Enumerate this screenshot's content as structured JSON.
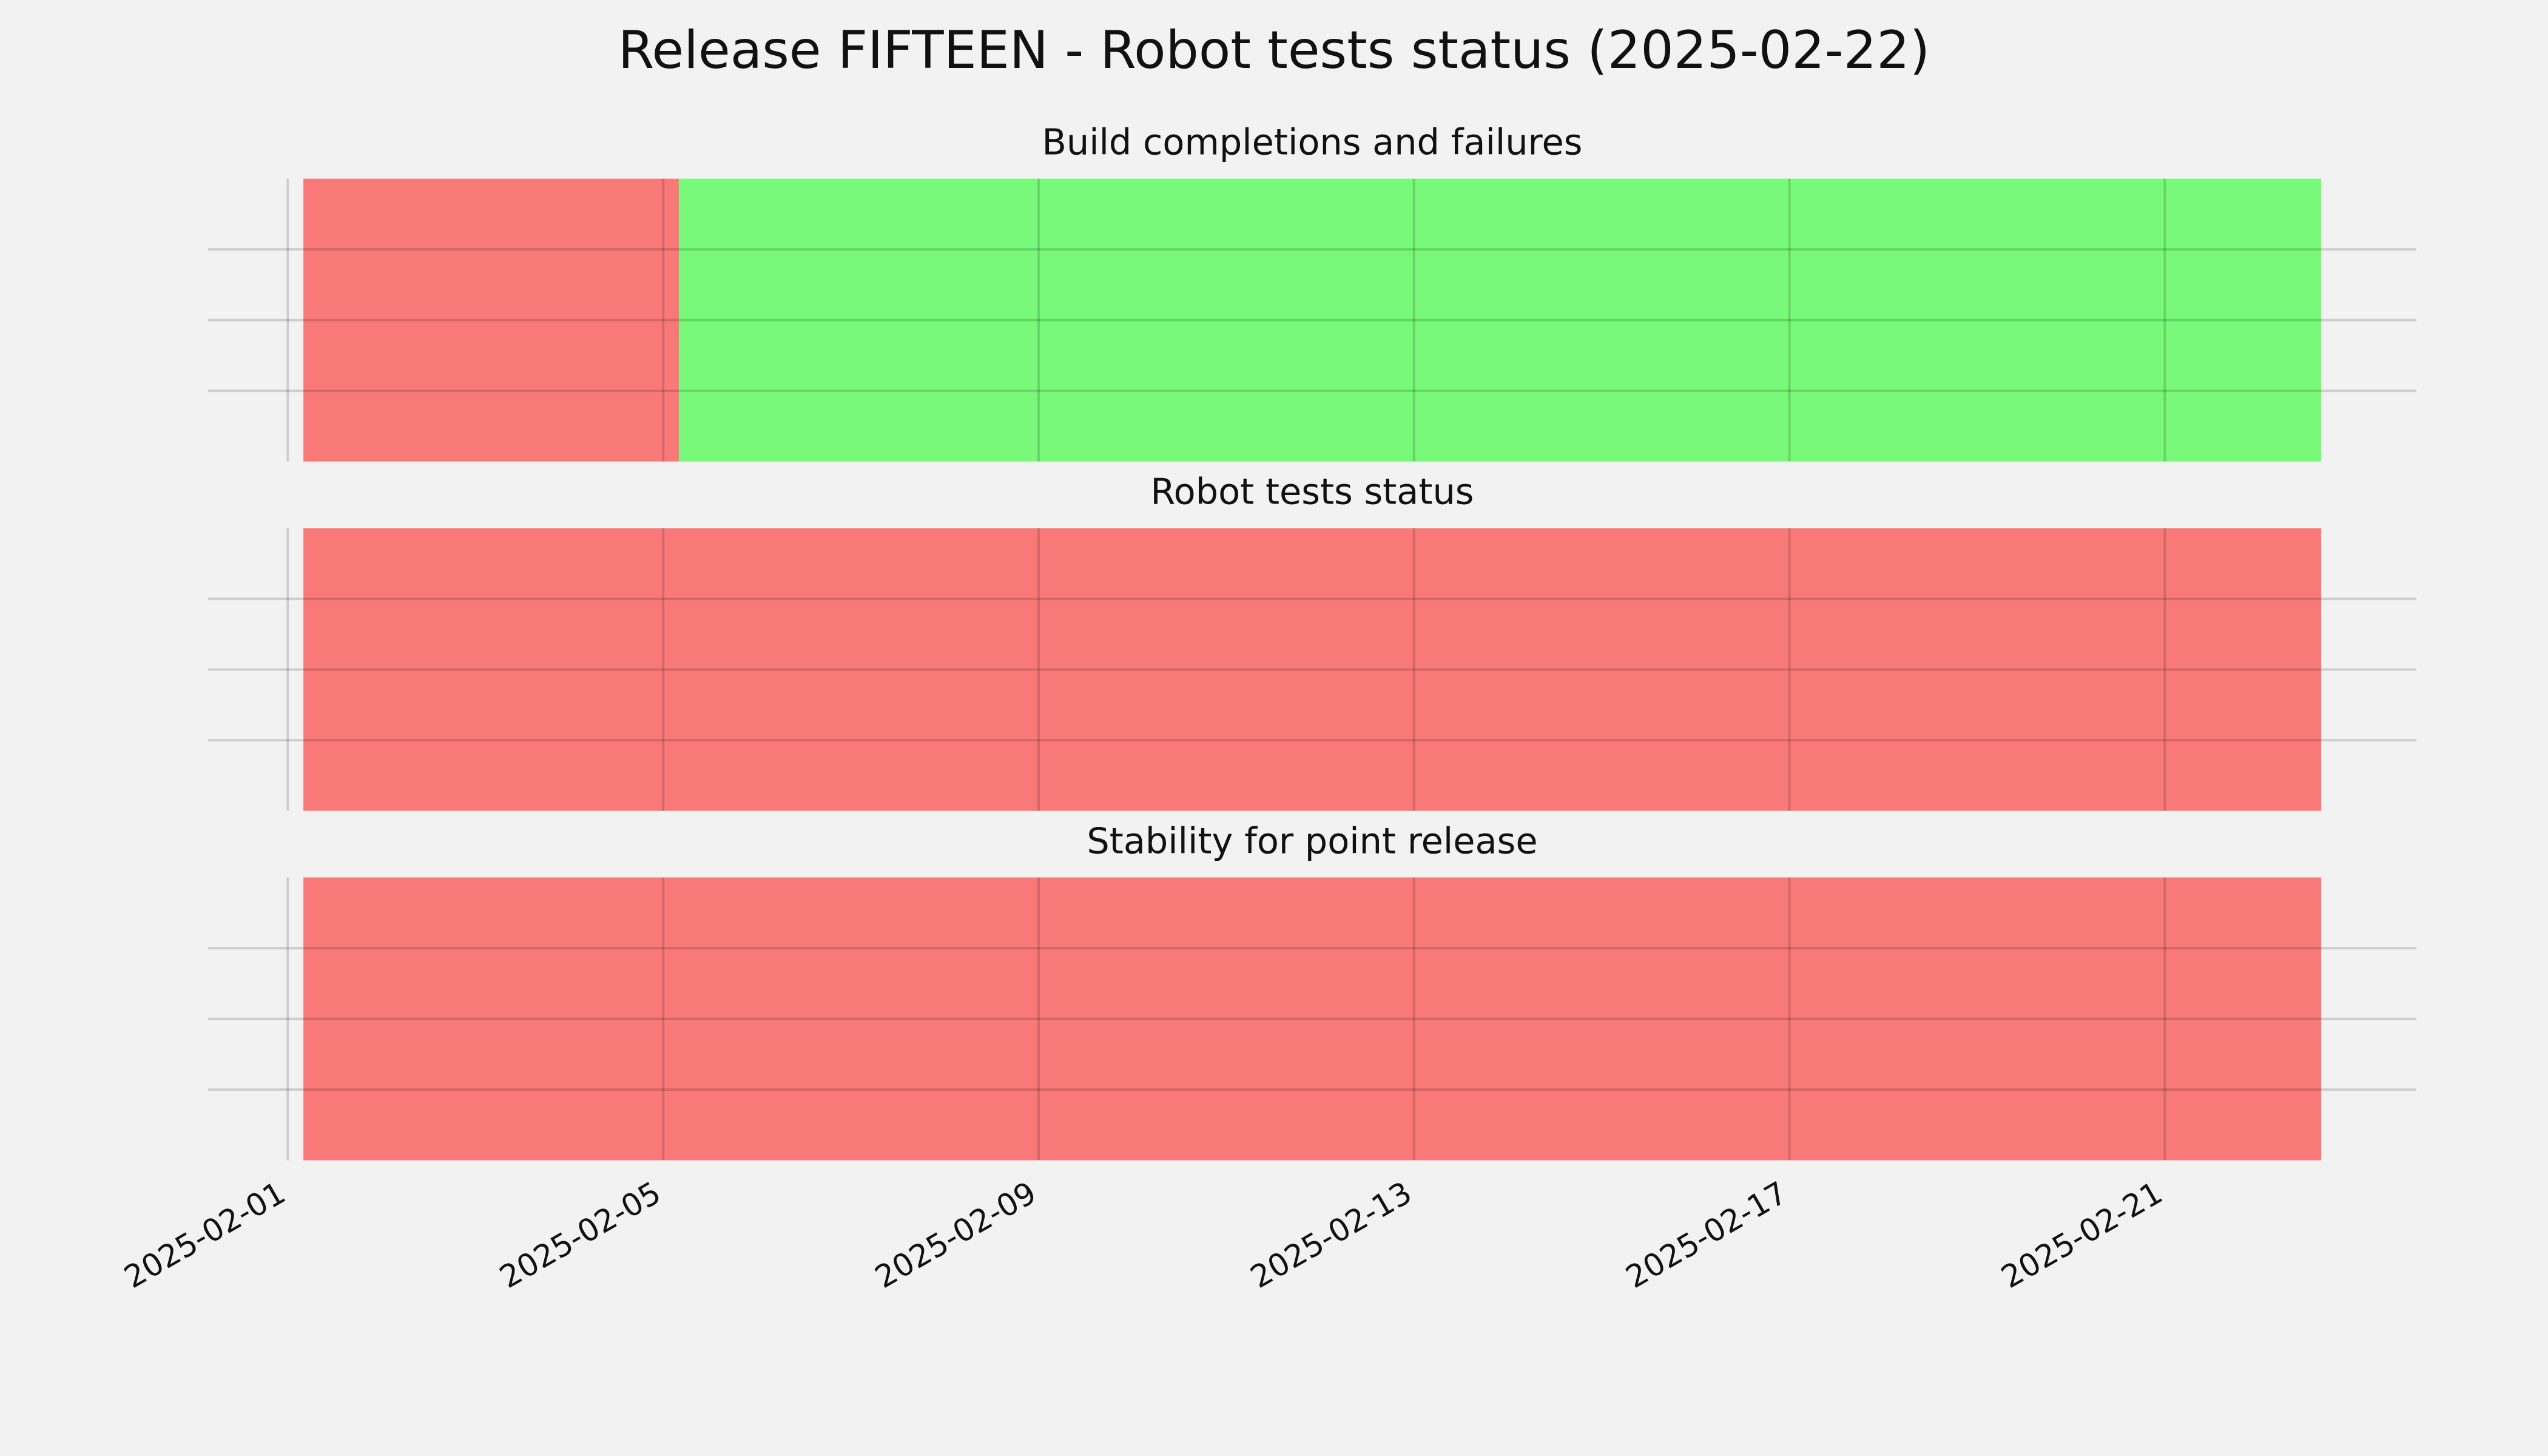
{
  "title": "Release FIFTEEN - Robot tests status (2025-02-22)",
  "chart_data": [
    {
      "type": "timeline",
      "title": "Build completions and failures",
      "segments": [
        {
          "start": "2025-02-01T04:00",
          "end": "2025-02-05T04:00",
          "color": "#ff0000"
        },
        {
          "start": "2025-02-05T04:00",
          "end": "2025-02-22T16:00",
          "color": "#00ff00"
        }
      ],
      "alpha": 0.5,
      "xlim": [
        "2025-01-31T03:36",
        "2025-02-23T16:20"
      ],
      "xticks": [
        "2025-02-01",
        "2025-02-05",
        "2025-02-09",
        "2025-02-13",
        "2025-02-17",
        "2025-02-21"
      ],
      "ylim": [
        0,
        1
      ],
      "yticks": [
        0.25,
        0.5,
        0.75
      ],
      "grid": true,
      "xtick_labels": false
    },
    {
      "type": "timeline",
      "title": "Robot tests status",
      "segments": [
        {
          "start": "2025-02-01T04:00",
          "end": "2025-02-22T16:00",
          "color": "#ff0000"
        }
      ],
      "alpha": 0.5,
      "xlim": [
        "2025-01-31T03:36",
        "2025-02-23T16:20"
      ],
      "xticks": [
        "2025-02-01",
        "2025-02-05",
        "2025-02-09",
        "2025-02-13",
        "2025-02-17",
        "2025-02-21"
      ],
      "ylim": [
        0,
        1
      ],
      "yticks": [
        0.25,
        0.5,
        0.75
      ],
      "grid": true,
      "xtick_labels": false
    },
    {
      "type": "timeline",
      "title": "Stability for point release",
      "segments": [
        {
          "start": "2025-02-01T04:00",
          "end": "2025-02-22T16:00",
          "color": "#ff0000"
        }
      ],
      "alpha": 0.5,
      "xlim": [
        "2025-01-31T03:36",
        "2025-02-23T16:20"
      ],
      "xticks": [
        "2025-02-01",
        "2025-02-05",
        "2025-02-09",
        "2025-02-13",
        "2025-02-17",
        "2025-02-21"
      ],
      "ylim": [
        0,
        1
      ],
      "yticks": [
        0.25,
        0.5,
        0.75
      ],
      "grid": true,
      "xtick_labels": true
    }
  ]
}
